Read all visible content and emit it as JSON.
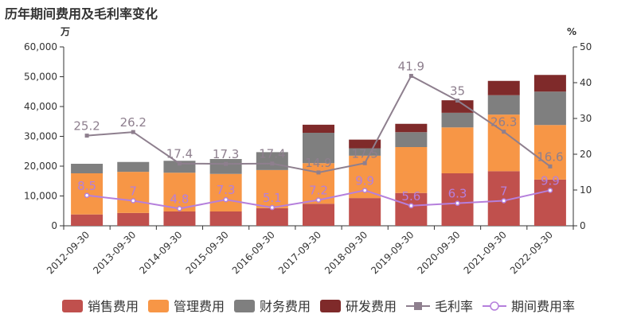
{
  "chart_data": {
    "type": "bar",
    "title": "历年期间费用及毛利率变化",
    "left_axis_unit": "万",
    "right_axis_unit": "%",
    "categories": [
      "2012-09-30",
      "2013-09-30",
      "2014-09-30",
      "2015-09-30",
      "2016-09-30",
      "2017-09-30",
      "2018-09-30",
      "2019-09-30",
      "2020-09-30",
      "2021-09-30",
      "2022-09-30"
    ],
    "left_axis": {
      "min": 0,
      "max": 60000,
      "ticks": [
        "0",
        "10,000",
        "20,000",
        "30,000",
        "40,000",
        "50,000",
        "60,000"
      ]
    },
    "right_axis": {
      "min": 0,
      "max": 50,
      "ticks": [
        "0",
        "10",
        "20",
        "30",
        "40",
        "50"
      ]
    },
    "stacked_series": [
      {
        "name": "销售费用",
        "color": "#c0504d",
        "values": [
          3800,
          4300,
          4800,
          4800,
          5900,
          7400,
          9300,
          11000,
          17600,
          18300,
          15500
        ]
      },
      {
        "name": "管理费用",
        "color": "#f79646",
        "values": [
          13800,
          13800,
          13000,
          12600,
          12800,
          13600,
          14200,
          15400,
          15400,
          19000,
          18300
        ]
      },
      {
        "name": "财务费用",
        "color": "#7f7f7f",
        "values": [
          3200,
          3300,
          4000,
          5000,
          6000,
          10200,
          2500,
          5000,
          4900,
          6500,
          11200
        ]
      },
      {
        "name": "研发费用",
        "color": "#7f2a2a",
        "values": [
          0,
          0,
          0,
          0,
          0,
          2700,
          2900,
          2800,
          4200,
          4800,
          5600
        ]
      }
    ],
    "line_series": [
      {
        "name": "毛利率",
        "color": "#8e7f8e",
        "values": [
          25.2,
          26.2,
          17.4,
          17.3,
          17.4,
          14.9,
          17.5,
          41.9,
          35,
          26.3,
          16.6
        ],
        "labels": [
          "25.2",
          "26.2",
          "17.4",
          "17.3",
          "17.4",
          "14.9",
          "17.5",
          "41.9",
          "35",
          "26.3",
          "16.6"
        ]
      },
      {
        "name": "期间费用率",
        "color": "#b57fdc",
        "values": [
          8.5,
          7,
          4.8,
          7.3,
          5.1,
          7.2,
          9.9,
          5.6,
          6.3,
          7,
          9.9
        ],
        "labels": [
          "8.5",
          "7",
          "4.8",
          "7.3",
          "5.1",
          "7.2",
          "9.9",
          "5.6",
          "6.3",
          "7",
          "9.9"
        ]
      }
    ],
    "legend_position": "bottom",
    "grid": false
  }
}
